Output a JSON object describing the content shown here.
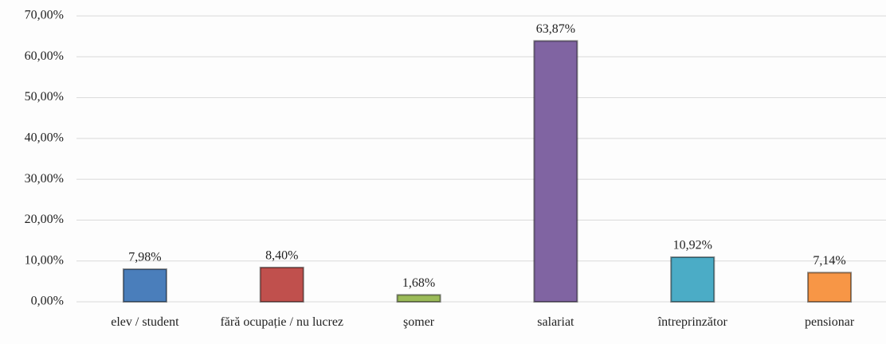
{
  "chart_data": {
    "type": "bar",
    "categories": [
      "elev / student",
      "fără ocupație / nu lucrez",
      "şomer",
      "salariat",
      "întreprinzător",
      "pensionar"
    ],
    "values": [
      7.98,
      8.4,
      1.68,
      63.87,
      10.92,
      7.14
    ],
    "value_labels": [
      "7,98%",
      "8,40%",
      "1,68%",
      "63,87%",
      "10,92%",
      "7,14%"
    ],
    "colors": [
      "#4a7ebb",
      "#c0504d",
      "#9bbb59",
      "#8064a2",
      "#4bacc6",
      "#f79646"
    ],
    "ylim": [
      0,
      70
    ],
    "yticks": [
      {
        "value": 0,
        "label": "0,00%"
      },
      {
        "value": 10,
        "label": "10,00%"
      },
      {
        "value": 20,
        "label": "20,00%"
      },
      {
        "value": 30,
        "label": "30,00%"
      },
      {
        "value": 40,
        "label": "40,00%"
      },
      {
        "value": 50,
        "label": "50,00%"
      },
      {
        "value": 60,
        "label": "60,00%"
      },
      {
        "value": 70,
        "label": "70,00%"
      }
    ],
    "grid": true
  }
}
